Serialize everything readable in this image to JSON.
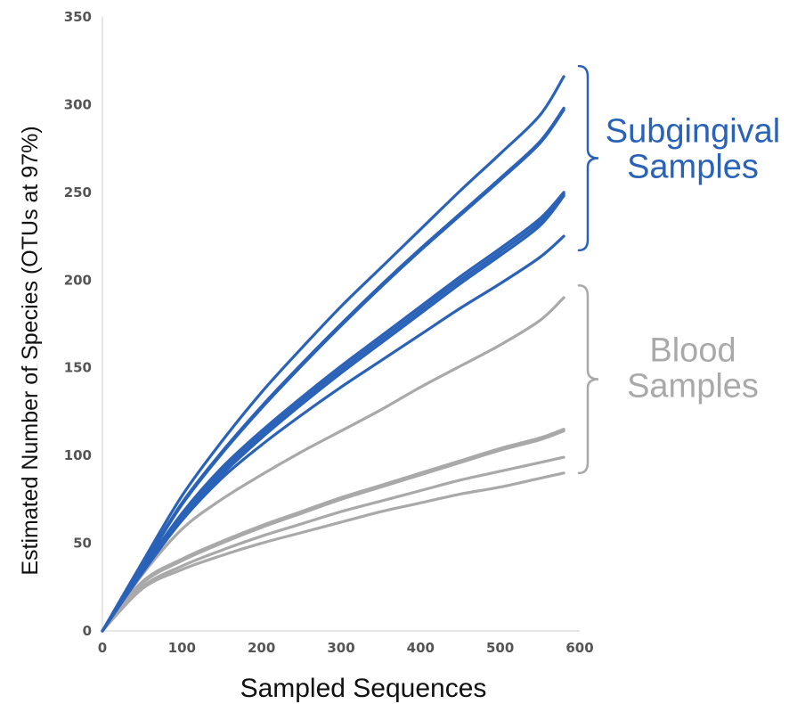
{
  "chart_data": {
    "type": "line",
    "xlabel": "Sampled Sequences",
    "ylabel": "Estimated Number of Species (OTUs at 97%)",
    "xlim": [
      0,
      600
    ],
    "ylim": [
      0,
      350
    ],
    "x_ticks": [
      "0",
      "100",
      "200",
      "300",
      "400",
      "500",
      "600"
    ],
    "y_ticks": [
      "0",
      "50",
      "100",
      "150",
      "200",
      "250",
      "300",
      "350"
    ],
    "grid": false,
    "groups": [
      {
        "label_lines": [
          "Subgingival",
          "Samples"
        ],
        "color": "#2a62b8",
        "bracket_range": [
          217,
          322
        ],
        "label_y": 275
      },
      {
        "label_lines": [
          "Blood",
          "Samples"
        ],
        "color": "#a9a9a9",
        "bracket_range": [
          90,
          197
        ],
        "label_y": 150
      }
    ],
    "series": [
      {
        "group": 0,
        "x": [
          0,
          50,
          100,
          150,
          200,
          250,
          300,
          350,
          400,
          450,
          500,
          550,
          580
        ],
        "y": [
          0,
          39,
          77,
          108,
          136,
          161,
          185,
          207,
          229,
          251,
          272,
          294,
          316
        ]
      },
      {
        "group": 0,
        "x": [
          0,
          50,
          100,
          150,
          200,
          250,
          300,
          350,
          400,
          450,
          500,
          550,
          580
        ],
        "y": [
          0,
          37,
          73,
          102,
          128,
          152,
          175,
          197,
          218,
          238,
          258,
          279,
          298
        ]
      },
      {
        "group": 0,
        "x": [
          0,
          50,
          100,
          150,
          200,
          250,
          300,
          350,
          400,
          450,
          500,
          550,
          580
        ],
        "y": [
          0,
          36,
          72,
          101,
          127,
          151,
          174,
          196,
          217,
          237,
          257,
          278,
          297
        ]
      },
      {
        "group": 0,
        "x": [
          0,
          50,
          100,
          150,
          200,
          250,
          300,
          350,
          400,
          450,
          500,
          550,
          580
        ],
        "y": [
          0,
          35,
          67,
          93,
          114,
          133,
          151,
          168,
          185,
          202,
          218,
          235,
          250
        ]
      },
      {
        "group": 0,
        "x": [
          0,
          50,
          100,
          150,
          200,
          250,
          300,
          350,
          400,
          450,
          500,
          550,
          580
        ],
        "y": [
          0,
          34,
          65,
          91,
          112,
          131,
          149,
          166,
          183,
          200,
          216,
          233,
          249
        ]
      },
      {
        "group": 0,
        "x": [
          0,
          50,
          100,
          150,
          200,
          250,
          300,
          350,
          400,
          450,
          500,
          550,
          580
        ],
        "y": [
          0,
          34,
          64,
          89,
          110,
          129,
          147,
          164,
          181,
          198,
          214,
          231,
          248
        ]
      },
      {
        "group": 0,
        "x": [
          0,
          50,
          100,
          150,
          200,
          250,
          300,
          350,
          400,
          450,
          500,
          550,
          580
        ],
        "y": [
          0,
          33,
          63,
          87,
          106,
          123,
          139,
          154,
          169,
          184,
          198,
          213,
          225
        ]
      },
      {
        "group": 1,
        "x": [
          0,
          50,
          100,
          150,
          200,
          250,
          300,
          350,
          400,
          450,
          500,
          550,
          580
        ],
        "y": [
          0,
          32,
          58,
          75,
          89,
          102,
          114,
          126,
          139,
          151,
          163,
          177,
          190
        ]
      },
      {
        "group": 1,
        "x": [
          0,
          50,
          100,
          150,
          200,
          250,
          300,
          350,
          400,
          450,
          500,
          550,
          580
        ],
        "y": [
          0,
          28,
          41,
          51,
          60,
          68,
          76,
          83,
          90,
          97,
          104,
          110,
          115
        ]
      },
      {
        "group": 1,
        "x": [
          0,
          50,
          100,
          150,
          200,
          250,
          300,
          350,
          400,
          450,
          500,
          550,
          580
        ],
        "y": [
          0,
          27,
          40,
          50,
          59,
          67,
          75,
          82,
          89,
          96,
          103,
          109,
          114
        ]
      },
      {
        "group": 1,
        "x": [
          0,
          50,
          100,
          150,
          200,
          250,
          300,
          350,
          400,
          450,
          500,
          550,
          580
        ],
        "y": [
          0,
          25,
          37,
          46,
          54,
          61,
          68,
          74,
          80,
          86,
          91,
          96,
          99
        ]
      },
      {
        "group": 1,
        "x": [
          0,
          50,
          100,
          150,
          200,
          250,
          300,
          350,
          400,
          450,
          500,
          550,
          580
        ],
        "y": [
          0,
          24,
          35,
          43,
          50,
          56,
          62,
          68,
          73,
          78,
          82,
          87,
          90
        ]
      }
    ]
  }
}
